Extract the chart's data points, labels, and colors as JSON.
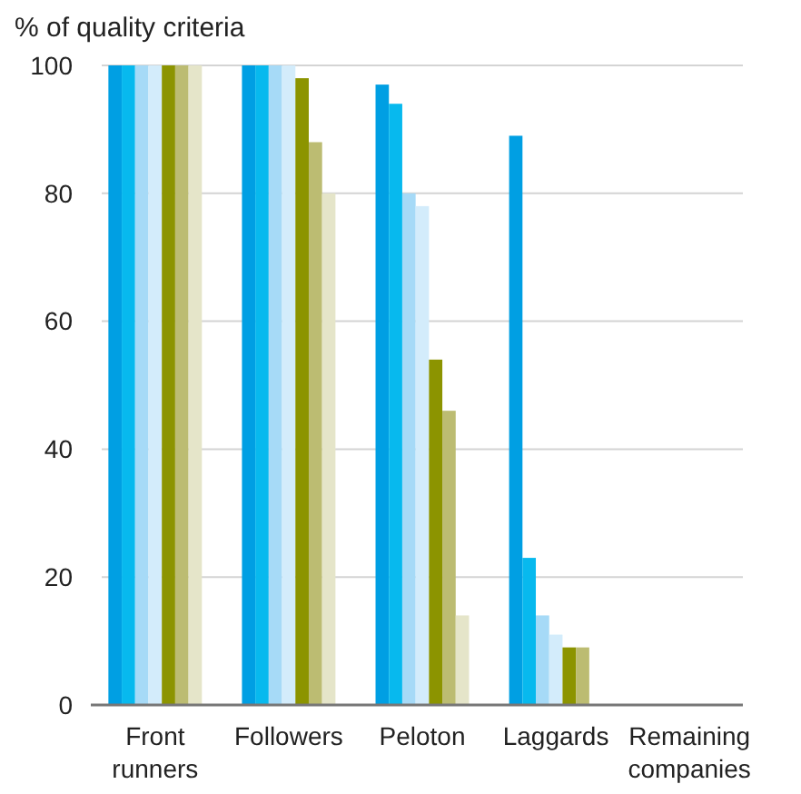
{
  "chart_data": {
    "type": "bar",
    "title": "% of quality criteria",
    "categories": [
      "Front runners",
      "Followers",
      "Peloton",
      "Laggards",
      "Remaining companies"
    ],
    "series": [
      {
        "color": "#009fe3",
        "values": [
          100,
          100,
          97,
          89,
          0
        ]
      },
      {
        "color": "#07b9ee",
        "values": [
          100,
          100,
          94,
          23,
          0
        ]
      },
      {
        "color": "#a6daf7",
        "values": [
          100,
          100,
          80,
          14,
          0
        ]
      },
      {
        "color": "#d3ecfb",
        "values": [
          100,
          100,
          78,
          11,
          0
        ]
      },
      {
        "color": "#8c9400",
        "values": [
          100,
          98,
          54,
          9,
          0
        ]
      },
      {
        "color": "#bcbc72",
        "values": [
          100,
          88,
          46,
          9,
          0
        ]
      },
      {
        "color": "#e5e5c9",
        "values": [
          100,
          80,
          14,
          0,
          0
        ]
      }
    ],
    "ylim": [
      0,
      100
    ],
    "yticks": [
      0,
      20,
      40,
      60,
      80,
      100
    ],
    "grid": "y"
  }
}
